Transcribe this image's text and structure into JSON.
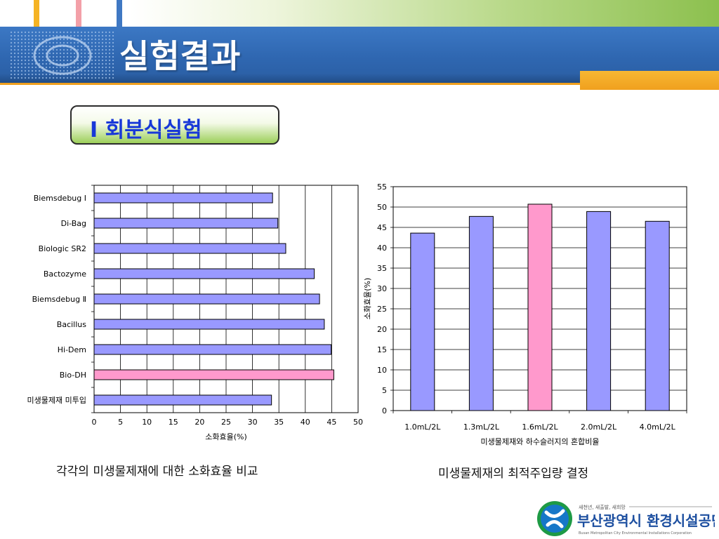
{
  "header": {
    "title": "실험결과"
  },
  "section": {
    "title": "Ⅰ  회분식실험"
  },
  "colors": {
    "bar": "#9999ff",
    "highlight": "#ff99cc",
    "banner": "#2f67b1",
    "accent": "#f0a01e",
    "section_text": "#1838d8"
  },
  "chart_data": [
    {
      "type": "bar",
      "orientation": "horizontal",
      "categories": [
        "Biemsdebug Ⅰ",
        "Di-Bag",
        "Biologic SR2",
        "Bactozyme",
        "Biemsdebug Ⅱ",
        "Bacillus",
        "Hi-Dem",
        "Bio-DH",
        "미생물제재 미투입"
      ],
      "values": [
        33.8,
        34.8,
        36.3,
        41.7,
        42.7,
        43.6,
        44.9,
        45.4,
        33.6
      ],
      "highlight_index": 7,
      "xlabel": "소화효율(%)",
      "xlim": [
        0,
        50
      ],
      "xticks": [
        "0",
        "5",
        "10",
        "15",
        "20",
        "25",
        "30",
        "35",
        "40",
        "45",
        "50"
      ],
      "grid": true,
      "caption": "각각의 미생물제재에 대한 소화효율 비교"
    },
    {
      "type": "bar",
      "orientation": "vertical",
      "categories": [
        "1.0mL/2L",
        "1.3mL/2L",
        "1.6mL/2L",
        "2.0mL/2L",
        "4.0mL/2L"
      ],
      "values": [
        43.6,
        47.7,
        50.7,
        48.9,
        46.5
      ],
      "highlight_index": 2,
      "xlabel": "미생물제재와 하수슬러지의 혼합비율",
      "ylabel": "소화효율(%)",
      "ylim": [
        0,
        55
      ],
      "yticks": [
        "0",
        "5",
        "10",
        "15",
        "20",
        "25",
        "30",
        "35",
        "40",
        "45",
        "50",
        "55"
      ],
      "grid": true,
      "caption": "미생물제재의 최적주입량 결정"
    }
  ],
  "footer": {
    "org_tagline": "새천년, 새출발, 새희망",
    "org_name": "부산광역시 환경시설공단",
    "org_name_en": "Busan Metropolitan City Environmental Installations Corporation"
  }
}
